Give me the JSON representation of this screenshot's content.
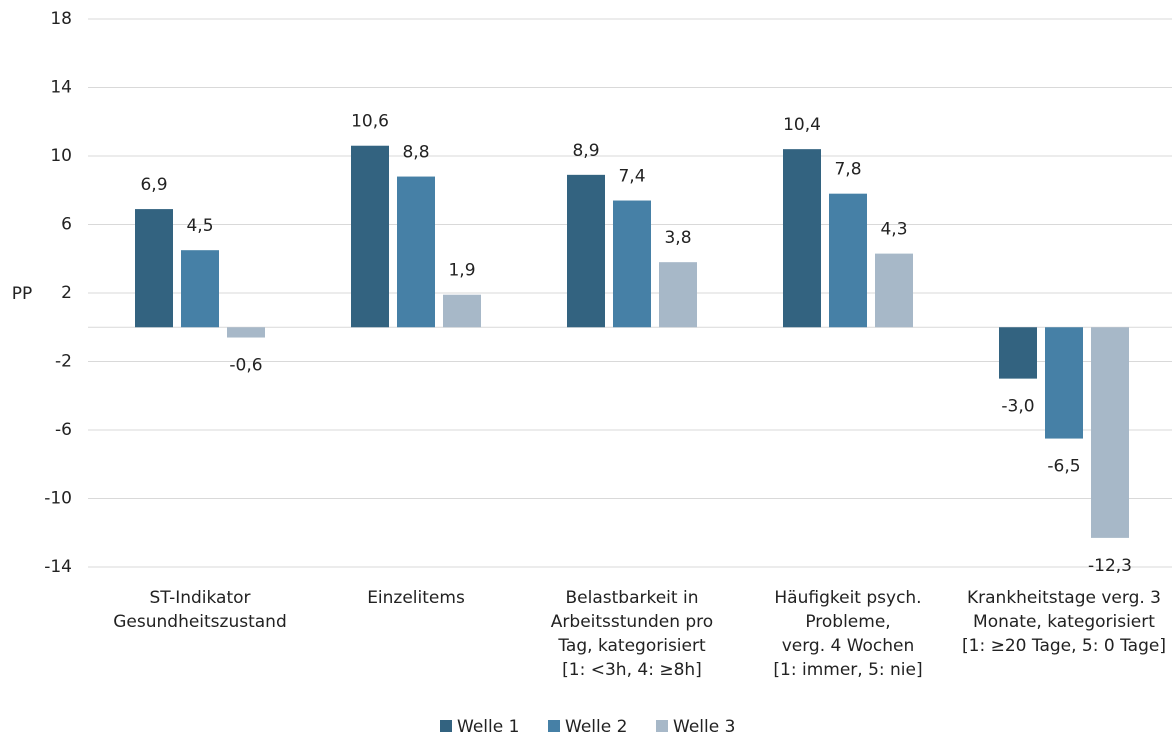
{
  "chart_data": {
    "type": "bar",
    "ylabel": "PP",
    "categories": [
      [
        "ST-Indikator",
        "Gesundheitszustand"
      ],
      [
        "Einzelitems"
      ],
      [
        "Belastbarkeit in",
        "Arbeitsstunden pro",
        "Tag, kategorisiert",
        "[1: <3h, 4: ≥8h]"
      ],
      [
        "Häufigkeit psych.",
        "Probleme,",
        "verg. 4 Wochen",
        "[1: immer, 5: nie]"
      ],
      [
        "Krankheitstage verg. 3",
        "Monate, kategorisiert",
        "[1: ≥20 Tage, 5: 0 Tage]"
      ]
    ],
    "series": [
      {
        "name": "Welle 1",
        "color": "#336380",
        "values": [
          6.9,
          10.6,
          8.9,
          10.4,
          -3.0
        ],
        "value_labels": [
          "6,9",
          "10,6",
          "8,9",
          "10,4",
          "-3,0"
        ]
      },
      {
        "name": "Welle 2",
        "color": "#4680a6",
        "values": [
          4.5,
          8.8,
          7.4,
          7.8,
          -6.5
        ],
        "value_labels": [
          "4,5",
          "8,8",
          "7,4",
          "7,8",
          "-6,5"
        ]
      },
      {
        "name": "Welle 3",
        "color": "#a7b8c8",
        "values": [
          -0.6,
          1.9,
          3.8,
          4.3,
          -12.3
        ],
        "value_labels": [
          "-0,6",
          "1,9",
          "3,8",
          "4,3",
          "-12,3"
        ]
      }
    ],
    "ylim": [
      -14,
      18
    ],
    "yticks": [
      18,
      14,
      10,
      6,
      2,
      -2,
      -6,
      -10,
      -14
    ],
    "grid": true,
    "legend": "bottom"
  }
}
